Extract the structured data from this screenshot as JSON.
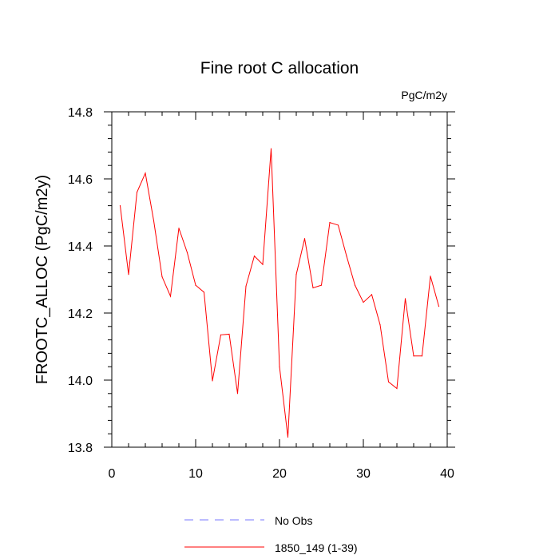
{
  "chart_data": {
    "type": "line",
    "title": "Fine root C allocation",
    "units": "PgC/m2y",
    "xlabel": "",
    "ylabel": "FROOTC_ALLOC  (PgC/m2y)",
    "xlim": [
      0,
      40
    ],
    "ylim": [
      13.8,
      14.8
    ],
    "x_ticks": [
      0,
      10,
      20,
      30,
      40
    ],
    "x_tick_labels": [
      "0",
      "10",
      "20",
      "30",
      "40"
    ],
    "y_ticks": [
      13.8,
      14.0,
      14.2,
      14.4,
      14.6,
      14.8
    ],
    "y_tick_labels": [
      "13.8",
      "14.0",
      "14.2",
      "14.4",
      "14.6",
      "14.8"
    ],
    "series": [
      {
        "name": "1850_149 (1-39)",
        "color": "#ff0000",
        "dash": "solid",
        "x": [
          1,
          2,
          3,
          4,
          5,
          6,
          7,
          8,
          9,
          10,
          11,
          12,
          13,
          14,
          15,
          16,
          17,
          18,
          19,
          20,
          21,
          22,
          23,
          24,
          25,
          26,
          27,
          28,
          29,
          30,
          31,
          32,
          33,
          34,
          35,
          36,
          37,
          38,
          39
        ],
        "values": [
          14.52,
          14.315,
          14.56,
          14.617,
          14.475,
          14.308,
          14.25,
          14.453,
          14.38,
          14.283,
          14.262,
          13.998,
          14.135,
          14.137,
          13.96,
          14.28,
          14.37,
          14.345,
          14.69,
          14.04,
          13.83,
          14.315,
          14.422,
          14.275,
          14.283,
          14.47,
          14.462,
          14.37,
          14.283,
          14.232,
          14.255,
          14.165,
          13.995,
          13.975,
          14.243,
          14.072,
          14.072,
          14.31,
          14.22
        ]
      }
    ],
    "legend": [
      {
        "label": "No Obs",
        "color": "#7777ff",
        "dash": "dashed"
      },
      {
        "label": "1850_149 (1-39)",
        "color": "#ff0000",
        "dash": "solid"
      }
    ]
  }
}
